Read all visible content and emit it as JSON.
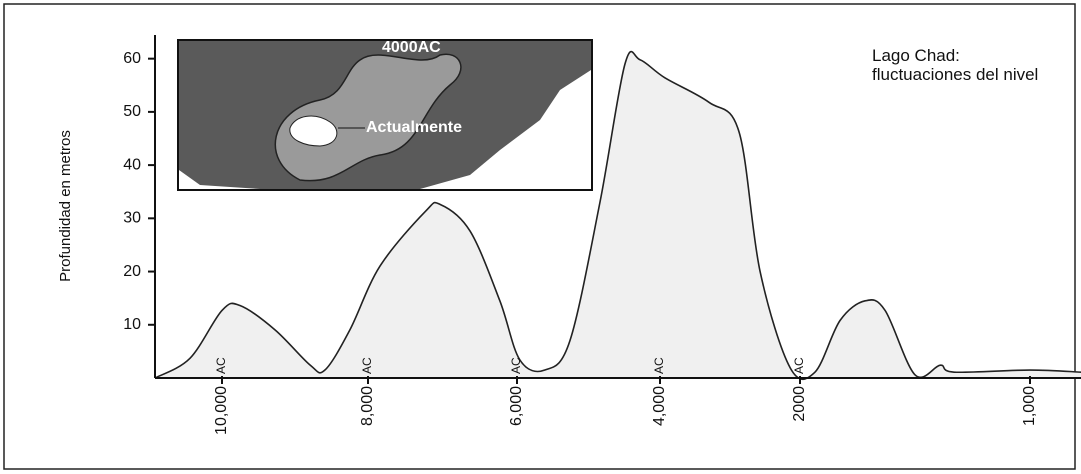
{
  "chart_data": {
    "type": "area",
    "title": "Lago Chad: fluctuaciones del nivel",
    "y_label": "Profundidad en metros",
    "annotations": [
      "4000AC",
      "Actualmente"
    ],
    "x": [
      10920,
      10440,
      10000,
      9750,
      9270,
      8790,
      8590,
      8250,
      7840,
      7230,
      7030,
      6630,
      6230,
      5960,
      5610,
      5260,
      4840,
      4490,
      4280,
      3930,
      3300,
      2870,
      2570,
      2140,
      1935,
      1826,
      1717,
      1630,
      1500,
      1390,
      1330,
      1000,
      780
    ],
    "values": [
      0,
      3.7,
      12.7,
      13.6,
      9,
      2.4,
      1.5,
      9,
      21,
      31.3,
      32.6,
      27.6,
      14.5,
      3.4,
      1.5,
      7,
      33,
      59,
      59.8,
      56.4,
      51.8,
      46.2,
      20,
      1.9,
      1.1,
      10.8,
      14.5,
      12.7,
      0.6,
      2.4,
      1.1,
      1.5,
      1.1
    ],
    "color": "#f0f0f0",
    "line_color": "#222222",
    "xlim": [
      10920,
      780
    ],
    "xticks": [
      {
        "value": 10000,
        "label": "10,000",
        "unit": "AC"
      },
      {
        "value": 8000,
        "label": "8,000",
        "unit": "AC"
      },
      {
        "value": 6000,
        "label": "6,000",
        "unit": "AC"
      },
      {
        "value": 4000,
        "label": "4,000",
        "unit": "AC"
      },
      {
        "value": 2000,
        "label": "2000",
        "unit": "AC"
      },
      {
        "value": 1000,
        "label": "1,000"
      }
    ],
    "ylim": [
      0,
      60.5
    ],
    "yticks": [
      10,
      20,
      30,
      40,
      50,
      60
    ],
    "grid": false
  }
}
